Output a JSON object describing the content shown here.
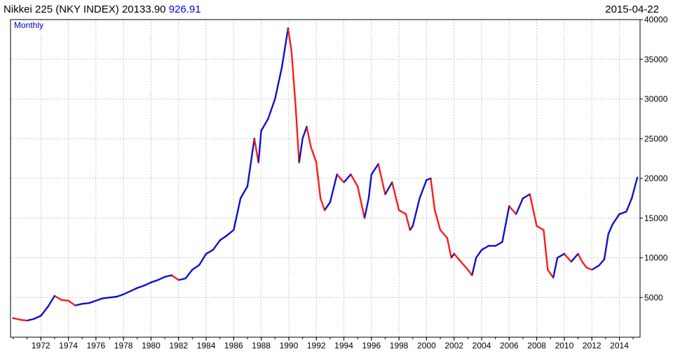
{
  "header": {
    "title": "Nikkei 225 (NKY INDEX)",
    "last": "20133.90",
    "change": "926.91",
    "date": "2015-04-22"
  },
  "chart_data": {
    "type": "line",
    "frequency_label": "Monthly",
    "grid": true,
    "y_axis_position": "right",
    "xlim": [
      1969.8,
      2015.5
    ],
    "ylim": [
      0,
      40000
    ],
    "x_ticks": [
      1972,
      1974,
      1976,
      1978,
      1980,
      1982,
      1984,
      1986,
      1988,
      1990,
      1992,
      1994,
      1996,
      1998,
      2000,
      2002,
      2004,
      2006,
      2008,
      2010,
      2012,
      2014
    ],
    "y_ticks": [
      5000,
      10000,
      15000,
      20000,
      25000,
      30000,
      35000,
      40000
    ],
    "colors": {
      "up": "#1010cc",
      "down": "#ff1a1a",
      "grid": "#c8c8c8",
      "axis": "#000000"
    },
    "series": [
      {
        "x": [
          1970.0,
          1970.5,
          1971.0,
          1971.5,
          1972.0,
          1972.5,
          1973.0,
          1973.5,
          1974.0,
          1974.5,
          1975.0,
          1975.5,
          1976.0,
          1976.5,
          1977.0,
          1977.5,
          1978.0,
          1978.5,
          1979.0,
          1979.5,
          1980.0,
          1980.5,
          1981.0,
          1981.5,
          1982.0,
          1982.5,
          1983.0,
          1983.5,
          1984.0,
          1984.5,
          1985.0,
          1985.5,
          1986.0,
          1986.5,
          1987.0,
          1987.5,
          1987.8,
          1988.0,
          1988.5,
          1989.0,
          1989.5,
          1989.95,
          1990.2,
          1990.5,
          1990.75,
          1991.0,
          1991.3,
          1991.6,
          1992.0,
          1992.3,
          1992.6,
          1993.0,
          1993.5,
          1994.0,
          1994.5,
          1995.0,
          1995.5,
          1995.8,
          1996.0,
          1996.5,
          1997.0,
          1997.5,
          1998.0,
          1998.5,
          1998.8,
          1999.0,
          1999.5,
          2000.0,
          2000.3,
          2000.6,
          2001.0,
          2001.5,
          2001.8,
          2002.0,
          2002.5,
          2003.0,
          2003.3,
          2003.6,
          2004.0,
          2004.5,
          2005.0,
          2005.5,
          2006.0,
          2006.5,
          2007.0,
          2007.5,
          2008.0,
          2008.5,
          2008.8,
          2009.2,
          2009.5,
          2010.0,
          2010.5,
          2011.0,
          2011.3,
          2011.6,
          2012.0,
          2012.5,
          2012.9,
          2013.2,
          2013.5,
          2014.0,
          2014.5,
          2014.9,
          2015.3
        ],
        "y": [
          2400,
          2200,
          2100,
          2300,
          2700,
          3800,
          5200,
          4700,
          4600,
          4000,
          4200,
          4300,
          4600,
          4900,
          5000,
          5100,
          5400,
          5800,
          6200,
          6500,
          6900,
          7200,
          7600,
          7800,
          7200,
          7400,
          8500,
          9100,
          10500,
          11000,
          12200,
          12800,
          13500,
          17500,
          19000,
          25000,
          22000,
          26000,
          27500,
          30000,
          34000,
          38900,
          36000,
          29000,
          22000,
          25000,
          26500,
          24000,
          22000,
          17500,
          16000,
          17000,
          20500,
          19500,
          20500,
          19000,
          15000,
          17500,
          20500,
          21800,
          18000,
          19500,
          16000,
          15500,
          13500,
          14000,
          17500,
          19800,
          20000,
          16000,
          13500,
          12500,
          10000,
          10500,
          9500,
          8500,
          7800,
          10000,
          11000,
          11500,
          11500,
          12000,
          16500,
          15500,
          17500,
          18000,
          14000,
          13500,
          8500,
          7500,
          10000,
          10500,
          9500,
          10500,
          9500,
          8800,
          8500,
          9000,
          9800,
          13000,
          14200,
          15500,
          15800,
          17500,
          20100
        ]
      }
    ]
  }
}
